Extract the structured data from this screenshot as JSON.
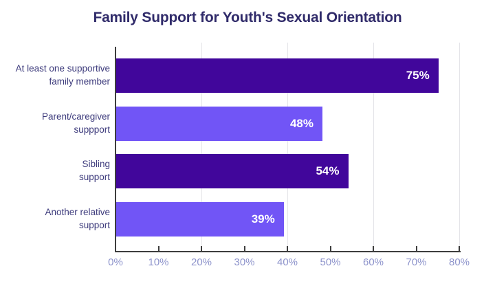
{
  "title": "Family Support for Youth's Sexual Orientation",
  "colors": {
    "background": "#ffffff",
    "title_text": "#302b6a",
    "category_text": "#3d3b7c",
    "tick_text": "#8d93cb",
    "axis_line": "#3d3d3d",
    "gridline": "#e4e4e8",
    "bar_dark": "#41069b",
    "bar_light": "#7155f6",
    "value_text": "#ffffff"
  },
  "chart_data": {
    "type": "bar",
    "orientation": "horizontal",
    "title": "Family Support for Youth's Sexual Orientation",
    "xlabel": "",
    "ylabel": "",
    "categories": [
      [
        "At least one supportive",
        "family member"
      ],
      [
        "Parent/caregiver",
        "suppport"
      ],
      [
        "Sibling",
        "support"
      ],
      [
        "Another relative",
        "support"
      ]
    ],
    "values": [
      75,
      48,
      54,
      39
    ],
    "value_labels": [
      "75%",
      "48%",
      "54%",
      "39%"
    ],
    "bar_colors": [
      "#41069b",
      "#7155f6",
      "#41069b",
      "#7155f6"
    ],
    "xlim": [
      0,
      80
    ],
    "x_ticks": [
      0,
      10,
      20,
      30,
      40,
      50,
      60,
      70,
      80
    ],
    "x_tick_labels": [
      "0%",
      "10%",
      "20%",
      "30%",
      "40%",
      "50%",
      "60%",
      "70%",
      "80%"
    ],
    "gridlines_at": [
      20,
      40,
      60,
      80
    ],
    "grid": "vertical-only",
    "legend": "none",
    "value_label_position": "inside-end"
  }
}
